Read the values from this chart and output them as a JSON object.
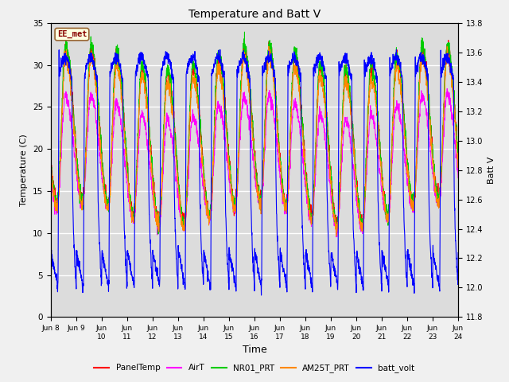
{
  "title": "Temperature and Batt V",
  "xlabel": "Time",
  "ylabel_left": "Temperature (C)",
  "ylabel_right": "Batt V",
  "annotation": "EE_met",
  "ylim_left": [
    0,
    35
  ],
  "ylim_right": [
    11.8,
    13.8
  ],
  "yticks_left": [
    0,
    5,
    10,
    15,
    20,
    25,
    30,
    35
  ],
  "yticks_right": [
    11.8,
    12.0,
    12.2,
    12.4,
    12.6,
    12.8,
    13.0,
    13.2,
    13.4,
    13.6,
    13.8
  ],
  "xtick_labels": [
    "Jun 9",
    "Jun\n10",
    "Jun\n11",
    "Jun\n12",
    "Jun\n13",
    "Jun\n14",
    "Jun\n15",
    "Jun\n16",
    "Jun\n17",
    "Jun\n18",
    "Jun\n19",
    "Jun\n20",
    "Jun\n21",
    "Jun\n22",
    "Jun\n23",
    "Jun\n24"
  ],
  "colors": {
    "PanelTemp": "#ff0000",
    "AirT": "#ff00ff",
    "NR01_PRT": "#00cc00",
    "AM25T_PRT": "#ff8800",
    "batt_volt": "#0000ff"
  },
  "legend_entries": [
    "PanelTemp",
    "AirT",
    "NR01_PRT",
    "AM25T_PRT",
    "batt_volt"
  ],
  "background_color": "#dcdcdc",
  "grid_color": "#ffffff",
  "num_days": 16,
  "batt_min": 12.0,
  "batt_max": 13.65
}
